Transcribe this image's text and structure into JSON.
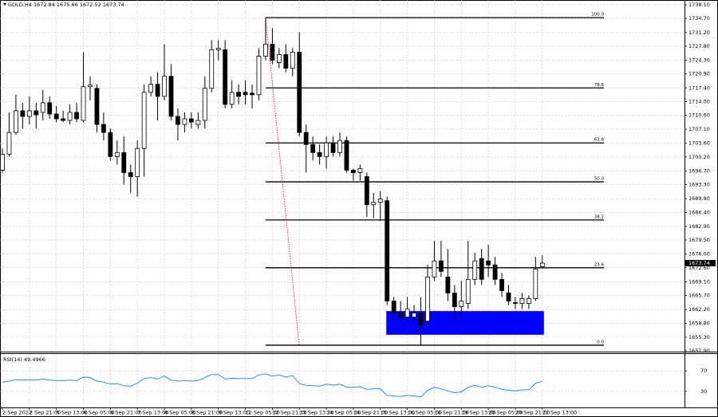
{
  "chart_data": {
    "type": "candlestick",
    "symbol": "GOLD,H4",
    "categories": [
      "2 Sep 2022",
      null,
      null,
      null,
      "2 Sep 21:00",
      null,
      null,
      null,
      "5 Sep 13:00",
      null,
      null,
      null,
      "6 Sep 05:00",
      null,
      null,
      null,
      "6 Sep 21:00",
      null,
      null,
      null,
      "7 Sep 13:00",
      null,
      null,
      null,
      "8 Sep 05:00",
      null,
      null,
      null,
      "8 Sep 21:00",
      null,
      null,
      null,
      "9 Sep 13:00",
      null,
      null,
      null,
      "12 Sep 05:00",
      null,
      null,
      null,
      "12 Sep 21:00",
      null,
      null,
      null,
      "13 Sep 13:00",
      null,
      null,
      null,
      "14 Sep 05:00",
      null,
      null,
      null,
      "14 Sep 21:00",
      null,
      null,
      null,
      "15 Sep 13:00",
      null,
      null,
      null,
      "16 Sep 05:00",
      null,
      null,
      null,
      "16 Sep 21:00",
      null,
      null,
      null,
      "19 Sep 13:00",
      null,
      null,
      null,
      "20 Sep 05:00",
      null,
      null,
      null,
      "20 Sep 21:00",
      null,
      null,
      null,
      "21 Sep 13:00"
    ],
    "open": [
      1696.9,
      1700.9,
      1706.3,
      1711.7,
      1710.3,
      1711.7,
      1711.3,
      1713.7,
      1710.9,
      1709.7,
      1709.3,
      1711.3,
      1709.3,
      1717.7,
      1717.3,
      1708.3,
      1706.3,
      1700.3,
      1701.3,
      1696.3,
      1695.3,
      1702.3,
      1716.3,
      1718.3,
      1715.3,
      1720.3,
      1710.3,
      1708.3,
      1709.7,
      1708.3,
      1709.3,
      1717.3,
      1726.9,
      1726.9,
      1713.3,
      1716.3,
      1716.3,
      1716.1,
      1715.7,
      1725.3,
      1728.3,
      1723.7,
      1725.7,
      1722.3,
      1726.3,
      1706.3,
      1703.3,
      1701.3,
      1700.3,
      1703.7,
      1701.3,
      1704.3,
      1696.9,
      1696.3,
      1695.3,
      1688.3,
      1688.9,
      1689.3,
      1664.3,
      1661.3,
      1660.3,
      1660.3,
      1661.3,
      1659.3,
      1670.3,
      1674.3,
      1670.3,
      1666.3,
      1662.9,
      1663.7,
      1669.7,
      1674.9,
      1674.3,
      1673.3,
      1669.7,
      1666.3,
      1663.9,
      1663.7,
      1663.7,
      1664.9,
      1672.84
    ],
    "high": [
      1702.3,
      1711.3,
      1715.7,
      1713.7,
      1715.3,
      1713.7,
      1716.9,
      1715.3,
      1712.9,
      1711.7,
      1713.3,
      1713.7,
      1726.3,
      1720.3,
      1718.3,
      1711.3,
      1707.3,
      1704.3,
      1705.3,
      1698.3,
      1704.3,
      1718.3,
      1720.3,
      1721.3,
      1728.3,
      1723.3,
      1712.3,
      1711.3,
      1711.3,
      1711.3,
      1720.3,
      1729.3,
      1729.3,
      1729.3,
      1719.3,
      1718.3,
      1719.3,
      1718.3,
      1727.3,
      1734.9,
      1732.3,
      1727.3,
      1728.3,
      1727.3,
      1731.3,
      1708.3,
      1705.3,
      1703.3,
      1705.3,
      1705.3,
      1706.3,
      1705.3,
      1697.3,
      1698.3,
      1696.3,
      1691.3,
      1691.7,
      1690.3,
      1665.3,
      1664.3,
      1665.3,
      1663.3,
      1665.3,
      1673.3,
      1679.3,
      1679.3,
      1677.3,
      1668.3,
      1669.3,
      1679.3,
      1676.3,
      1677.3,
      1678.3,
      1675.3,
      1671.3,
      1668.3,
      1665.3,
      1666.3,
      1665.7,
      1675.3,
      1675.66
    ],
    "low": [
      1696.3,
      1700.3,
      1705.7,
      1707.3,
      1708.3,
      1707.3,
      1709.3,
      1709.7,
      1708.9,
      1708.9,
      1708.3,
      1708.9,
      1708.9,
      1714.3,
      1706.3,
      1704.3,
      1699.3,
      1698.3,
      1693.3,
      1691.3,
      1690.3,
      1695.3,
      1715.3,
      1709.3,
      1714.3,
      1709.3,
      1704.3,
      1706.3,
      1707.3,
      1707.3,
      1707.3,
      1716.3,
      1724.3,
      1712.3,
      1712.3,
      1713.3,
      1713.3,
      1712.3,
      1714.3,
      1724.3,
      1723.3,
      1722.3,
      1721.3,
      1720.3,
      1705.3,
      1696.3,
      1699.3,
      1698.3,
      1697.3,
      1700.3,
      1700.3,
      1696.3,
      1694.3,
      1694.3,
      1685.3,
      1684.9,
      1684.3,
      1663.3,
      1660.3,
      1659.3,
      1659.3,
      1659.3,
      1653.3,
      1658.3,
      1669.3,
      1670.3,
      1664.3,
      1659.3,
      1660.3,
      1662.3,
      1668.3,
      1668.3,
      1670.3,
      1668.3,
      1665.3,
      1663.3,
      1662.3,
      1662.3,
      1662.3,
      1664.3,
      1672.52
    ],
    "close": [
      1700.9,
      1706.3,
      1711.7,
      1710.3,
      1711.7,
      1710.7,
      1713.7,
      1710.9,
      1709.7,
      1709.3,
      1711.3,
      1709.7,
      1717.7,
      1718.1,
      1708.3,
      1706.3,
      1700.3,
      1701.3,
      1696.3,
      1695.3,
      1702.3,
      1716.3,
      1718.3,
      1715.3,
      1720.3,
      1710.3,
      1708.3,
      1709.7,
      1708.9,
      1709.3,
      1717.3,
      1726.9,
      1727.3,
      1713.3,
      1716.3,
      1715.3,
      1715.7,
      1715.7,
      1725.3,
      1728.3,
      1724.3,
      1725.7,
      1722.3,
      1726.3,
      1706.3,
      1703.3,
      1701.3,
      1700.3,
      1703.7,
      1701.3,
      1704.3,
      1696.9,
      1696.3,
      1697.3,
      1688.3,
      1688.9,
      1689.7,
      1664.3,
      1661.3,
      1660.3,
      1662.3,
      1661.3,
      1658.3,
      1670.3,
      1674.3,
      1671.7,
      1666.3,
      1662.9,
      1664.3,
      1669.7,
      1674.3,
      1669.7,
      1673.3,
      1669.7,
      1666.9,
      1664.3,
      1663.7,
      1664.9,
      1664.9,
      1672.3,
      1673.74
    ],
    "ylim": [
      1651.9,
      1739.3
    ],
    "yticks": [
      {
        "value": 1738.1,
        "label": "1738.10"
      },
      {
        "value": 1734.7,
        "label": "1734.70"
      },
      {
        "value": 1731.2,
        "label": "1731.20"
      },
      {
        "value": 1727.8,
        "label": "1727.80"
      },
      {
        "value": 1724.3,
        "label": "1724.30"
      },
      {
        "value": 1720.9,
        "label": "1720.90"
      },
      {
        "value": 1717.4,
        "label": "1717.40"
      },
      {
        "value": 1714,
        "label": "1714.00"
      },
      {
        "value": 1710.6,
        "label": "1710.60"
      },
      {
        "value": 1707.1,
        "label": "1707.10"
      },
      {
        "value": 1703.6,
        "label": "1703.60"
      },
      {
        "value": 1700.2,
        "label": "1700.20"
      },
      {
        "value": 1696.7,
        "label": "1696.70"
      },
      {
        "value": 1693.3,
        "label": "1693.30"
      },
      {
        "value": 1689.8,
        "label": "1689.80"
      },
      {
        "value": 1686.4,
        "label": "1686.40"
      },
      {
        "value": 1682.9,
        "label": "1682.90"
      },
      {
        "value": 1679.5,
        "label": "1679.50"
      },
      {
        "value": 1676,
        "label": "1676.00"
      },
      {
        "value": 1672.6,
        "label": "1672.60"
      },
      {
        "value": 1669.1,
        "label": "1669.10"
      },
      {
        "value": 1665.7,
        "label": "1665.70"
      },
      {
        "value": 1662.2,
        "label": "1662.20"
      },
      {
        "value": 1658.8,
        "label": "1658.80"
      },
      {
        "value": 1655.3,
        "label": "1655.30"
      },
      {
        "value": 1651.9,
        "label": "1651.90"
      }
    ],
    "grid": true,
    "bull_color": "#ffffff",
    "bear_color": "#000000",
    "fib_levels": [
      {
        "label": "100.0",
        "price": 1734.9
      },
      {
        "label": "78.6",
        "price": 1717.4
      },
      {
        "label": "61.8",
        "price": 1703.7
      },
      {
        "label": "50.0",
        "price": 1694.0
      },
      {
        "label": "38.2",
        "price": 1684.5
      },
      {
        "label": "23.6",
        "price": 1672.6
      },
      {
        "label": "0.0",
        "price": 1653.3
      }
    ],
    "zone": {
      "from": 1661.8,
      "to": 1655.9,
      "color": "#0000ff"
    },
    "rsi": {
      "name": "RSI(14)",
      "color": "#1e90ff",
      "ylim": [
        0,
        100
      ],
      "yticks": [
        70,
        30
      ],
      "values": [
        48,
        50,
        53,
        52,
        53,
        52,
        54,
        52,
        51,
        51,
        52,
        51,
        58,
        57,
        50,
        48,
        44,
        45,
        41,
        40,
        46,
        55,
        57,
        54,
        60,
        52,
        50,
        51,
        50,
        51,
        57,
        63,
        63,
        54,
        56,
        55,
        55,
        55,
        62,
        64,
        60,
        62,
        58,
        61,
        45,
        42,
        41,
        40,
        44,
        42,
        44,
        38,
        38,
        39,
        34,
        35,
        35,
        22,
        21,
        20,
        22,
        21,
        19,
        32,
        38,
        35,
        31,
        27,
        29,
        38,
        42,
        38,
        41,
        38,
        34,
        32,
        31,
        33,
        33,
        46,
        49.4966
      ]
    }
  }
}
